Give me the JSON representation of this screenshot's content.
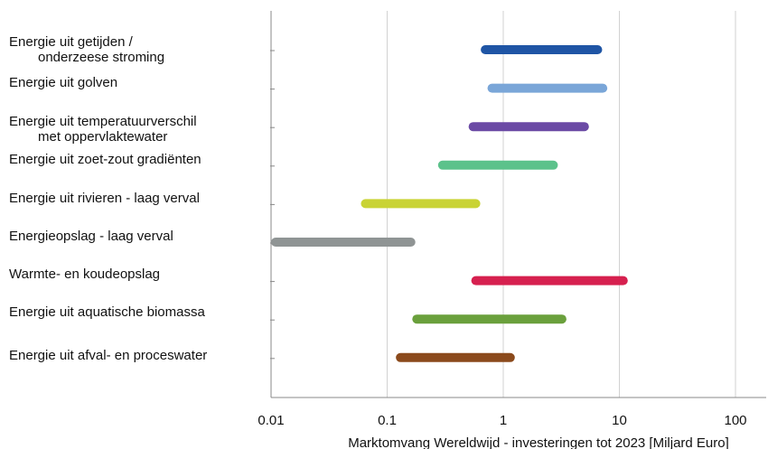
{
  "chart_data": {
    "type": "range-bar",
    "title": "",
    "xlabel": "Marktomvang Wereldwijd - investeringen tot 2023  [Miljard Euro]",
    "ylabel": "",
    "x_scale": "log",
    "xlim": [
      0.01,
      200
    ],
    "x_ticks": [
      {
        "value": 0.01,
        "label": "0.01"
      },
      {
        "value": 0.1,
        "label": "0.1"
      },
      {
        "value": 1,
        "label": "1"
      },
      {
        "value": 10,
        "label": "10"
      },
      {
        "value": 100,
        "label": "100"
      }
    ],
    "grid": "vertical",
    "series": [
      {
        "category": [
          "Energie uit getijden /",
          "onderzeese stroming"
        ],
        "min": 0.7,
        "max": 6.5,
        "color": "#1f55a5"
      },
      {
        "category": [
          "Energie uit golven"
        ],
        "min": 0.8,
        "max": 7.2,
        "color": "#7aa6d8"
      },
      {
        "category": [
          "Energie uit temperatuurverschil",
          "met oppervlaktewater"
        ],
        "min": 0.55,
        "max": 5.0,
        "color": "#6b4aa5"
      },
      {
        "category": [
          "Energie uit zoet-zout gradiënten"
        ],
        "min": 0.3,
        "max": 2.7,
        "color": "#5cc28b"
      },
      {
        "category": [
          "Energie uit rivieren - laag verval"
        ],
        "min": 0.065,
        "max": 0.58,
        "color": "#c9d335"
      },
      {
        "category": [
          "Energieopslag - laag verval"
        ],
        "min": 0.01,
        "max": 0.16,
        "color": "#8f9494"
      },
      {
        "category": [
          "Warmte- en koudeopslag"
        ],
        "min": 0.58,
        "max": 10.8,
        "color": "#d6204f"
      },
      {
        "category": [
          "Energie uit aquatische biomassa"
        ],
        "min": 0.18,
        "max": 3.2,
        "color": "#6aa03c"
      },
      {
        "category": [
          "Energie uit afval- en proceswater"
        ],
        "min": 0.13,
        "max": 1.15,
        "color": "#8b4a1c"
      }
    ]
  }
}
